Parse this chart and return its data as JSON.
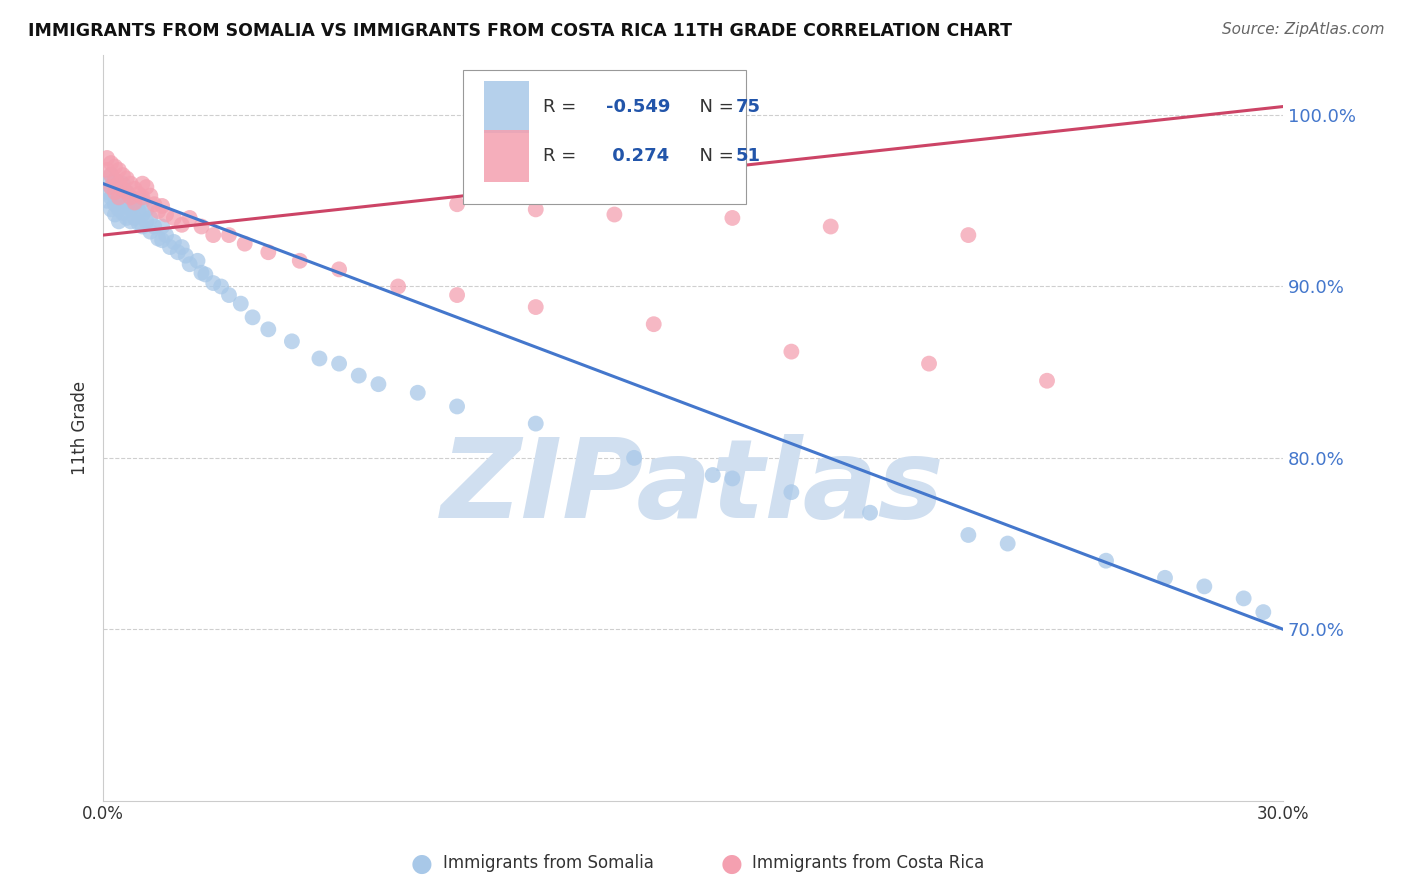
{
  "title": "IMMIGRANTS FROM SOMALIA VS IMMIGRANTS FROM COSTA RICA 11TH GRADE CORRELATION CHART",
  "source": "Source: ZipAtlas.com",
  "ylabel": "11th Grade",
  "somalia_R": -0.549,
  "somalia_N": 75,
  "costarica_R": 0.274,
  "costarica_N": 51,
  "somalia_color": "#a8c8e8",
  "costarica_color": "#f4a0b0",
  "somalia_line_color": "#4477cc",
  "costarica_line_color": "#cc4466",
  "background_color": "#ffffff",
  "grid_color": "#bbbbbb",
  "watermark_color": "#d0dff0",
  "ytick_color": "#4477cc",
  "xlim": [
    0.0,
    0.3
  ],
  "ylim": [
    0.6,
    1.035
  ],
  "yticks": [
    0.7,
    0.8,
    0.9,
    1.0
  ],
  "ytick_labels": [
    "70.0%",
    "80.0%",
    "90.0%",
    "100.0%"
  ],
  "somalia_line_x": [
    0.0,
    0.3
  ],
  "somalia_line_y": [
    0.96,
    0.7
  ],
  "costarica_line_x": [
    0.0,
    0.3
  ],
  "costarica_line_y": [
    0.93,
    1.005
  ],
  "somalia_x": [
    0.001,
    0.001,
    0.001,
    0.002,
    0.002,
    0.002,
    0.002,
    0.003,
    0.003,
    0.003,
    0.003,
    0.004,
    0.004,
    0.004,
    0.004,
    0.005,
    0.005,
    0.005,
    0.006,
    0.006,
    0.006,
    0.007,
    0.007,
    0.007,
    0.008,
    0.008,
    0.009,
    0.009,
    0.01,
    0.01,
    0.01,
    0.011,
    0.011,
    0.012,
    0.012,
    0.013,
    0.014,
    0.015,
    0.015,
    0.016,
    0.017,
    0.018,
    0.019,
    0.02,
    0.021,
    0.022,
    0.024,
    0.025,
    0.026,
    0.028,
    0.03,
    0.032,
    0.035,
    0.038,
    0.042,
    0.048,
    0.055,
    0.06,
    0.065,
    0.07,
    0.08,
    0.09,
    0.11,
    0.135,
    0.155,
    0.16,
    0.175,
    0.195,
    0.22,
    0.23,
    0.255,
    0.27,
    0.28,
    0.29,
    0.295
  ],
  "somalia_y": [
    0.96,
    0.955,
    0.95,
    0.965,
    0.958,
    0.952,
    0.945,
    0.962,
    0.955,
    0.948,
    0.942,
    0.958,
    0.952,
    0.945,
    0.938,
    0.96,
    0.95,
    0.943,
    0.955,
    0.947,
    0.94,
    0.952,
    0.945,
    0.938,
    0.948,
    0.94,
    0.944,
    0.937,
    0.95,
    0.942,
    0.935,
    0.945,
    0.938,
    0.94,
    0.932,
    0.935,
    0.928,
    0.935,
    0.927,
    0.93,
    0.923,
    0.926,
    0.92,
    0.923,
    0.918,
    0.913,
    0.915,
    0.908,
    0.907,
    0.902,
    0.9,
    0.895,
    0.89,
    0.882,
    0.875,
    0.868,
    0.858,
    0.855,
    0.848,
    0.843,
    0.838,
    0.83,
    0.82,
    0.8,
    0.79,
    0.788,
    0.78,
    0.768,
    0.755,
    0.75,
    0.74,
    0.73,
    0.725,
    0.718,
    0.71
  ],
  "costarica_x": [
    0.001,
    0.001,
    0.002,
    0.002,
    0.002,
    0.003,
    0.003,
    0.003,
    0.004,
    0.004,
    0.004,
    0.005,
    0.005,
    0.006,
    0.006,
    0.007,
    0.007,
    0.008,
    0.008,
    0.009,
    0.01,
    0.01,
    0.011,
    0.012,
    0.013,
    0.014,
    0.015,
    0.016,
    0.018,
    0.02,
    0.022,
    0.025,
    0.028,
    0.032,
    0.036,
    0.042,
    0.05,
    0.06,
    0.075,
    0.09,
    0.11,
    0.14,
    0.175,
    0.21,
    0.24,
    0.09,
    0.11,
    0.13,
    0.16,
    0.185,
    0.22
  ],
  "costarica_y": [
    0.975,
    0.968,
    0.972,
    0.965,
    0.958,
    0.97,
    0.962,
    0.955,
    0.968,
    0.96,
    0.952,
    0.965,
    0.957,
    0.963,
    0.955,
    0.96,
    0.952,
    0.957,
    0.949,
    0.954,
    0.96,
    0.952,
    0.958,
    0.953,
    0.948,
    0.944,
    0.947,
    0.942,
    0.94,
    0.936,
    0.94,
    0.935,
    0.93,
    0.93,
    0.925,
    0.92,
    0.915,
    0.91,
    0.9,
    0.895,
    0.888,
    0.878,
    0.862,
    0.855,
    0.845,
    0.948,
    0.945,
    0.942,
    0.94,
    0.935,
    0.93
  ]
}
